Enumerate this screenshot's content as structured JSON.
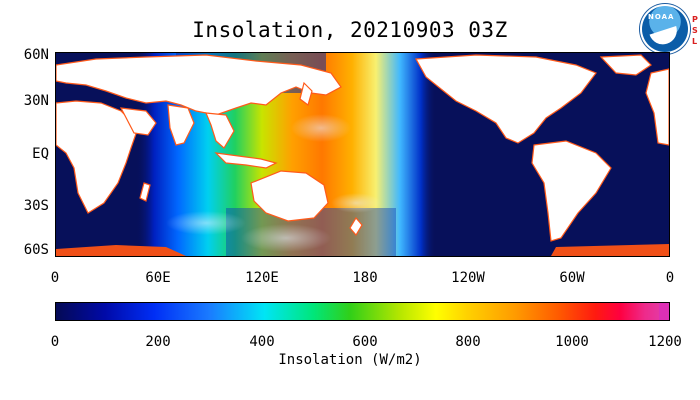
{
  "title": "Insolation, 20210903 03Z",
  "logos": {
    "noaa_text": "NOAA",
    "psl_letters": [
      "P",
      "S",
      "L"
    ]
  },
  "map": {
    "lat_ticks": [
      "60N",
      "30N",
      "EQ",
      "30S",
      "60S"
    ],
    "lon_ticks": [
      "0",
      "60E",
      "120E",
      "180",
      "120W",
      "60W",
      "0"
    ],
    "ocean_color": "#07105a",
    "land_color": "#ffffff",
    "coast_color": "#ff5a1a"
  },
  "colorbar": {
    "ticks": [
      "0",
      "200",
      "400",
      "600",
      "800",
      "1000",
      "1200"
    ],
    "label": "Insolation (W/m2)",
    "range": [
      0,
      1200
    ]
  }
}
